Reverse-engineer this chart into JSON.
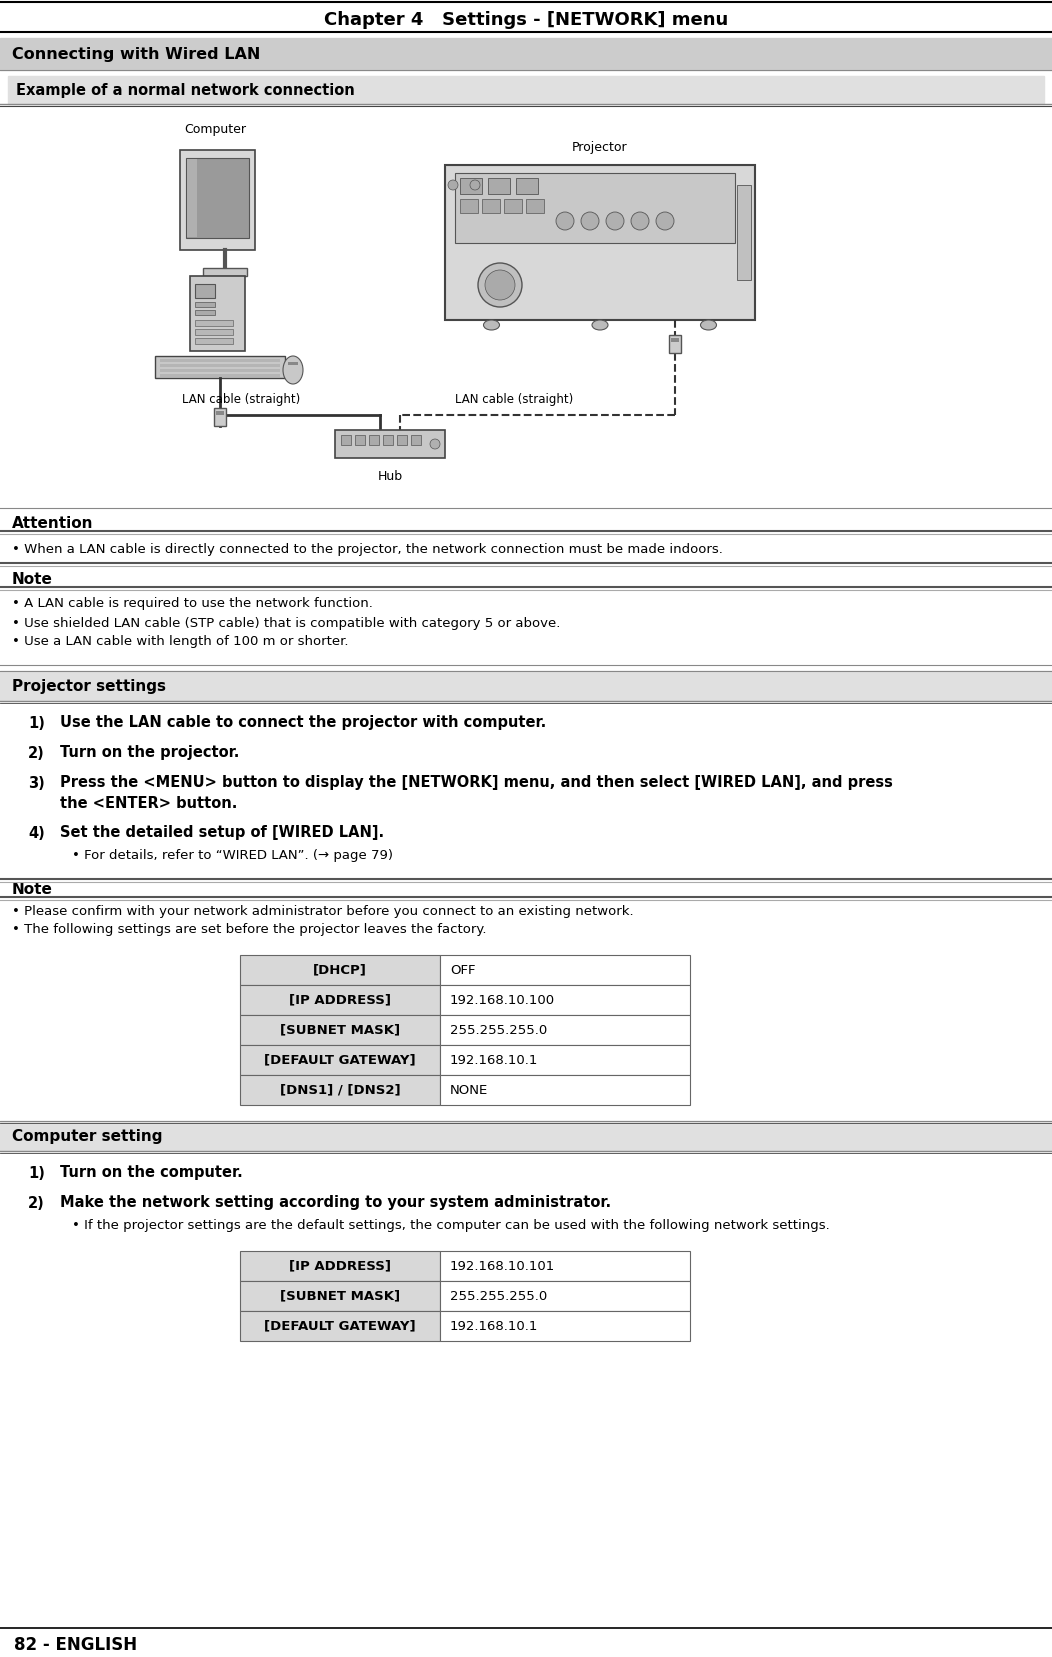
{
  "page_title": "Chapter 4   Settings - [NETWORK] menu",
  "section_title": "Connecting with Wired LAN",
  "subsection_title": "Example of a normal network connection",
  "attention_title": "Attention",
  "attention_bullet": "When a LAN cable is directly connected to the projector, the network connection must be made indoors.",
  "note1_title": "Note",
  "note1_bullets": [
    "A LAN cable is required to use the network function.",
    "Use shielded LAN cable (STP cable) that is compatible with category 5 or above.",
    "Use a LAN cable with length of 100 m or shorter."
  ],
  "proj_settings_title": "Projector settings",
  "proj_step4_bullet": "For details, refer to “WIRED LAN”. (→ page 79)",
  "note2_title": "Note",
  "note2_bullets": [
    "Please confirm with your network administrator before you connect to an existing network.",
    "The following settings are set before the projector leaves the factory."
  ],
  "proj_table": [
    {
      "key": "[DHCP]",
      "val": "OFF"
    },
    {
      "key": "[IP ADDRESS]",
      "val": "192.168.10.100"
    },
    {
      "key": "[SUBNET MASK]",
      "val": "255.255.255.0"
    },
    {
      "key": "[DEFAULT GATEWAY]",
      "val": "192.168.10.1"
    },
    {
      "key": "[DNS1] / [DNS2]",
      "val": "NONE"
    }
  ],
  "comp_settings_title": "Computer setting",
  "comp_step2_bullet": "If the projector settings are the default settings, the computer can be used with the following network settings.",
  "comp_table": [
    {
      "key": "[IP ADDRESS]",
      "val": "192.168.10.101"
    },
    {
      "key": "[SUBNET MASK]",
      "val": "255.255.255.0"
    },
    {
      "key": "[DEFAULT GATEWAY]",
      "val": "192.168.10.1"
    }
  ],
  "footer_left": "82 - ENGLISH",
  "bg_color": "#ffffff",
  "section_bg": "#cccccc",
  "subsection_bg": "#e0e0e0",
  "table_key_bg": "#d8d8d8",
  "table_border": "#666666",
  "double_line_dark": "#555555",
  "double_line_light": "#aaaaaa"
}
